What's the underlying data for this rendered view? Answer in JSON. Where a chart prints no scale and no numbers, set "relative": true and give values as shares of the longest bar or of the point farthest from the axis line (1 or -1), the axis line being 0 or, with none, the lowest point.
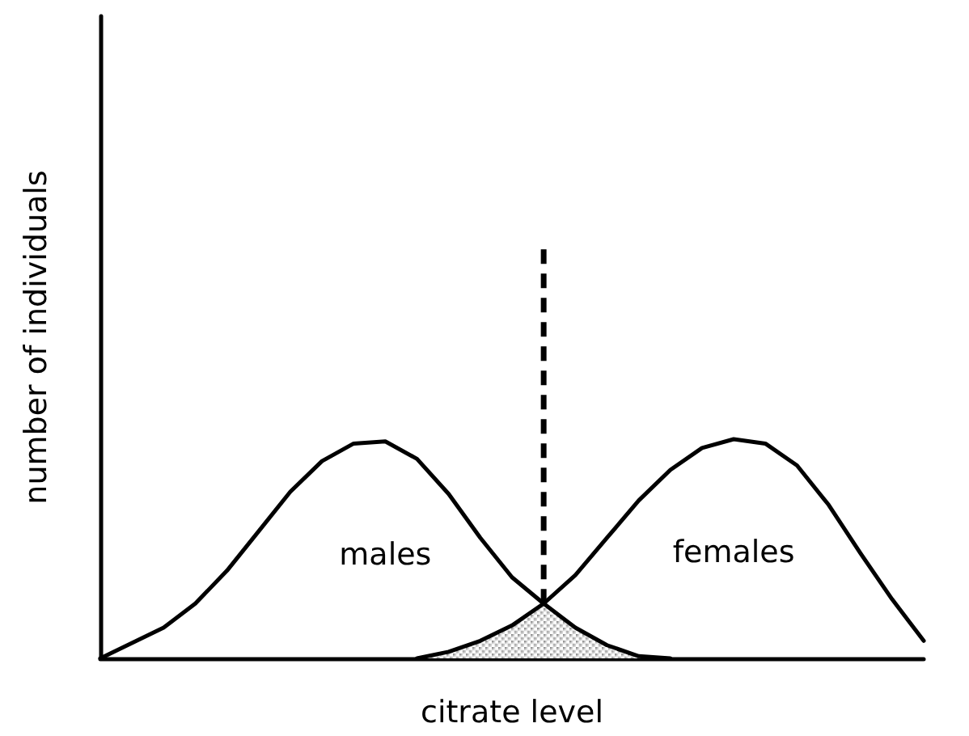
{
  "chart_data": {
    "type": "line",
    "relative": true,
    "xlabel": "citrate level",
    "ylabel": "number of individuals",
    "categories": [
      null,
      null,
      null,
      null,
      null,
      null,
      null,
      null,
      null,
      null,
      null,
      null,
      null,
      null,
      null,
      null,
      null,
      null,
      null,
      null,
      null,
      null,
      null,
      null,
      null,
      null,
      null
    ],
    "series": [
      {
        "name": "males",
        "color": "#000000",
        "values": [
          0,
          0.07,
          0.14,
          0.25,
          0.4,
          0.58,
          0.76,
          0.9,
          0.98,
          0.99,
          0.91,
          0.75,
          0.55,
          0.37,
          0.25,
          0.14,
          0.06,
          0.01,
          0,
          null,
          null,
          null,
          null,
          null,
          null,
          null,
          null
        ]
      },
      {
        "name": "females",
        "color": "#000000",
        "values": [
          null,
          null,
          null,
          null,
          null,
          null,
          null,
          null,
          null,
          null,
          0,
          0.03,
          0.08,
          0.15,
          0.25,
          0.38,
          0.55,
          0.72,
          0.86,
          0.96,
          1,
          0.98,
          0.88,
          0.7,
          0.48,
          0.27,
          0.08
        ]
      },
      {
        "type": "area",
        "color": "#888888",
        "values": [
          null,
          null,
          null,
          null,
          null,
          null,
          null,
          null,
          null,
          null,
          0,
          0.03,
          0.08,
          0.15,
          0.25,
          0.14,
          0.06,
          0.01,
          0,
          null,
          null,
          null,
          null,
          null,
          null,
          null,
          null
        ]
      }
    ],
    "grid": false,
    "marker": "none",
    "line_style": "solid"
  }
}
